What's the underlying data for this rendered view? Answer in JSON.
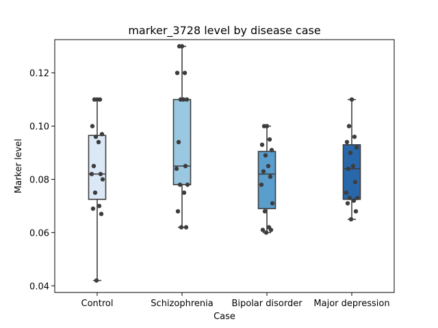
{
  "chart_data": {
    "type": "box",
    "title": "marker_3728 level by disease case",
    "xlabel": "Case",
    "ylabel": "Marker level",
    "ylim": [
      0.0375,
      0.1325
    ],
    "yticks": [
      "0.04",
      "0.06",
      "0.08",
      "0.10",
      "0.12"
    ],
    "ytick_values": [
      0.04,
      0.06,
      0.08,
      0.1,
      0.12
    ],
    "grid": false,
    "categories": [
      "Control",
      "Schizophrenia",
      "Bipolar disorder",
      "Major depression"
    ],
    "boxes": [
      {
        "category": "Control",
        "color": "#dbe9f6",
        "whisker_low": 0.042,
        "q1": 0.0725,
        "median": 0.082,
        "q3": 0.0965,
        "whisker_high": 0.11,
        "points": [
          0.11,
          0.11,
          0.11,
          0.1,
          0.097,
          0.096,
          0.094,
          0.085,
          0.082,
          0.082,
          0.08,
          0.075,
          0.07,
          0.069,
          0.067,
          0.042
        ]
      },
      {
        "category": "Schizophrenia",
        "color": "#9ac8e0",
        "whisker_low": 0.062,
        "q1": 0.078,
        "median": 0.085,
        "q3": 0.11,
        "whisker_high": 0.13,
        "points": [
          0.13,
          0.13,
          0.12,
          0.12,
          0.11,
          0.11,
          0.11,
          0.094,
          0.085,
          0.084,
          0.078,
          0.078,
          0.075,
          0.068,
          0.062,
          0.062
        ]
      },
      {
        "category": "Bipolar disorder",
        "color": "#5a9ecd",
        "whisker_low": 0.06,
        "q1": 0.069,
        "median": 0.082,
        "q3": 0.0905,
        "whisker_high": 0.1,
        "points": [
          0.1,
          0.1,
          0.095,
          0.093,
          0.091,
          0.089,
          0.085,
          0.083,
          0.081,
          0.078,
          0.071,
          0.068,
          0.062,
          0.061,
          0.061,
          0.06
        ]
      },
      {
        "category": "Major depression",
        "color": "#2967ab",
        "whisker_low": 0.065,
        "q1": 0.0725,
        "median": 0.084,
        "q3": 0.093,
        "whisker_high": 0.11,
        "points": [
          0.11,
          0.1,
          0.096,
          0.094,
          0.092,
          0.09,
          0.085,
          0.084,
          0.079,
          0.075,
          0.073,
          0.073,
          0.072,
          0.071,
          0.068,
          0.065
        ]
      }
    ],
    "point_color": "#3d3d3d",
    "edge_color": "#3d3d3d"
  }
}
